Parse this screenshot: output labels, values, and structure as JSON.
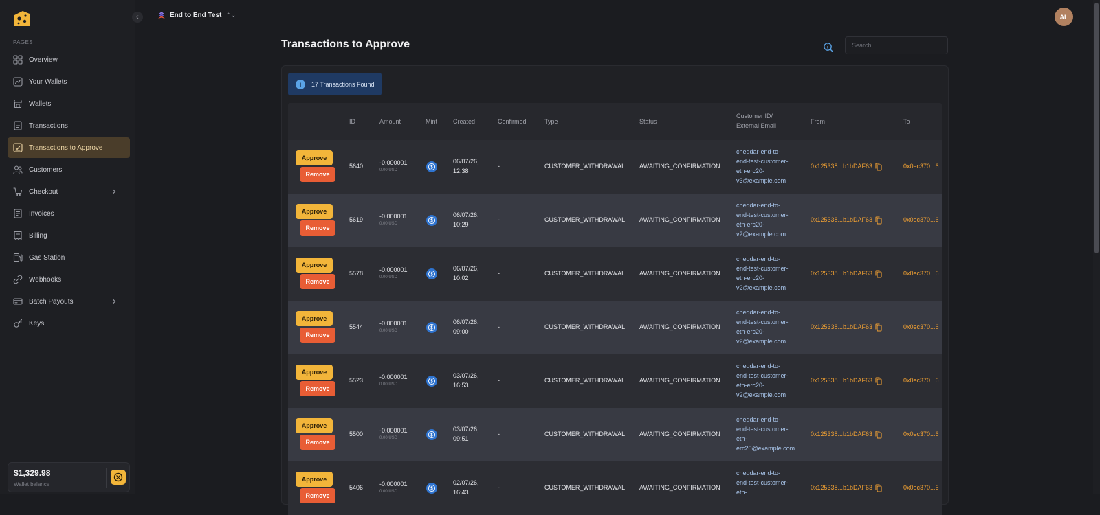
{
  "project": {
    "name": "End to End Test"
  },
  "user": {
    "initials": "AL"
  },
  "sidebar": {
    "section_label": "PAGES",
    "items": [
      {
        "label": "Overview",
        "icon": "grid-icon"
      },
      {
        "label": "Your Wallets",
        "icon": "chart-icon"
      },
      {
        "label": "Wallets",
        "icon": "store-icon"
      },
      {
        "label": "Transactions",
        "icon": "document-icon"
      },
      {
        "label": "Transactions to Approve",
        "icon": "approve-icon",
        "active": true
      },
      {
        "label": "Customers",
        "icon": "users-icon"
      },
      {
        "label": "Checkout",
        "icon": "cart-icon",
        "expandable": true
      },
      {
        "label": "Invoices",
        "icon": "invoice-icon"
      },
      {
        "label": "Billing",
        "icon": "billing-icon"
      },
      {
        "label": "Gas Station",
        "icon": "gas-icon"
      },
      {
        "label": "Webhooks",
        "icon": "webhook-icon"
      },
      {
        "label": "Batch Payouts",
        "icon": "payouts-icon",
        "expandable": true
      },
      {
        "label": "Keys",
        "icon": "key-icon"
      }
    ],
    "wallet": {
      "amount": "$1,329.98",
      "label": "Wallet balance"
    }
  },
  "main": {
    "title": "Transactions to Approve",
    "search_placeholder": "Search",
    "banner": "17 Transactions Found",
    "columns": {
      "id": "ID",
      "amount": "Amount",
      "mint": "Mint",
      "created": "Created",
      "confirmed": "Confirmed",
      "type": "Type",
      "status": "Status",
      "customer_line1": "Customer ID/",
      "customer_line2": "External Email",
      "from": "From",
      "to": "To"
    },
    "actions": {
      "approve": "Approve",
      "remove": "Remove"
    },
    "rows": [
      {
        "id": "5640",
        "amount": "-0.000001",
        "usd": "0.00 USD",
        "created_date": "06/07/26,",
        "created_time": "12:38",
        "confirmed": "-",
        "type": "CUSTOMER_WITHDRAWAL",
        "status": "AWAITING_CONFIRMATION",
        "email_lines": [
          "cheddar-end-to-",
          "end-test-customer-",
          "eth-erc20-",
          "v3@example.com"
        ],
        "from": "0x125338...b1bDAF63",
        "to": "0x0ec370...6"
      },
      {
        "id": "5619",
        "amount": "-0.000001",
        "usd": "0.00 USD",
        "created_date": "06/07/26,",
        "created_time": "10:29",
        "confirmed": "-",
        "type": "CUSTOMER_WITHDRAWAL",
        "status": "AWAITING_CONFIRMATION",
        "email_lines": [
          "cheddar-end-to-",
          "end-test-customer-",
          "eth-erc20-",
          "v2@example.com"
        ],
        "from": "0x125338...b1bDAF63",
        "to": "0x0ec370...6"
      },
      {
        "id": "5578",
        "amount": "-0.000001",
        "usd": "0.00 USD",
        "created_date": "06/07/26,",
        "created_time": "10:02",
        "confirmed": "-",
        "type": "CUSTOMER_WITHDRAWAL",
        "status": "AWAITING_CONFIRMATION",
        "email_lines": [
          "cheddar-end-to-",
          "end-test-customer-",
          "eth-erc20-",
          "v2@example.com"
        ],
        "from": "0x125338...b1bDAF63",
        "to": "0x0ec370...6"
      },
      {
        "id": "5544",
        "amount": "-0.000001",
        "usd": "0.00 USD",
        "created_date": "06/07/26,",
        "created_time": "09:00",
        "confirmed": "-",
        "type": "CUSTOMER_WITHDRAWAL",
        "status": "AWAITING_CONFIRMATION",
        "email_lines": [
          "cheddar-end-to-",
          "end-test-customer-",
          "eth-erc20-",
          "v2@example.com"
        ],
        "from": "0x125338...b1bDAF63",
        "to": "0x0ec370...6"
      },
      {
        "id": "5523",
        "amount": "-0.000001",
        "usd": "0.00 USD",
        "created_date": "03/07/26,",
        "created_time": "16:53",
        "confirmed": "-",
        "type": "CUSTOMER_WITHDRAWAL",
        "status": "AWAITING_CONFIRMATION",
        "email_lines": [
          "cheddar-end-to-",
          "end-test-customer-",
          "eth-erc20-",
          "v2@example.com"
        ],
        "from": "0x125338...b1bDAF63",
        "to": "0x0ec370...6"
      },
      {
        "id": "5500",
        "amount": "-0.000001",
        "usd": "0.00 USD",
        "created_date": "03/07/26,",
        "created_time": "09:51",
        "confirmed": "-",
        "type": "CUSTOMER_WITHDRAWAL",
        "status": "AWAITING_CONFIRMATION",
        "email_lines": [
          "cheddar-end-to-",
          "end-test-customer-",
          "eth-",
          "erc20@example.com"
        ],
        "from": "0x125338...b1bDAF63",
        "to": "0x0ec370...6"
      },
      {
        "id": "5406",
        "amount": "-0.000001",
        "usd": "0.00 USD",
        "created_date": "02/07/26,",
        "created_time": "16:43",
        "confirmed": "-",
        "type": "CUSTOMER_WITHDRAWAL",
        "status": "AWAITING_CONFIRMATION",
        "email_lines": [
          "cheddar-end-to-",
          "end-test-customer-",
          "eth-",
          ""
        ],
        "from": "0x125338...b1bDAF63",
        "to": "0x0ec370...6"
      }
    ]
  },
  "colors": {
    "accent": "#f2b53a",
    "danger": "#e85d35",
    "link": "#f0a033",
    "info": "#1f3a63"
  }
}
